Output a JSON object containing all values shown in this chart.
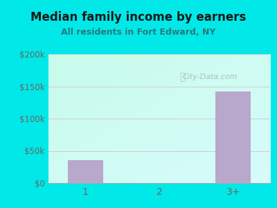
{
  "title": "Median family income by earners",
  "subtitle": "All residents in Fort Edward, NY",
  "categories": [
    "1",
    "2",
    "3+"
  ],
  "values": [
    35000,
    0,
    142000
  ],
  "bar_color": "#b8a8cc",
  "ylim": [
    0,
    200000
  ],
  "yticks": [
    0,
    50000,
    100000,
    150000,
    200000
  ],
  "ytick_labels": [
    "$0",
    "$50k",
    "$100k",
    "$150k",
    "$200k"
  ],
  "background_color": "#00e8e8",
  "title_color": "#1a1a1a",
  "subtitle_color": "#2a7a7a",
  "tick_color": "#666666",
  "grid_color": "#cccccc",
  "watermark": "City-Data.com",
  "plot_bg_colors": [
    "#e0f0e0",
    "#eaf5ea",
    "#f5fdf5",
    "#ffffff"
  ],
  "figsize": [
    4.0,
    3.0
  ],
  "dpi": 100
}
